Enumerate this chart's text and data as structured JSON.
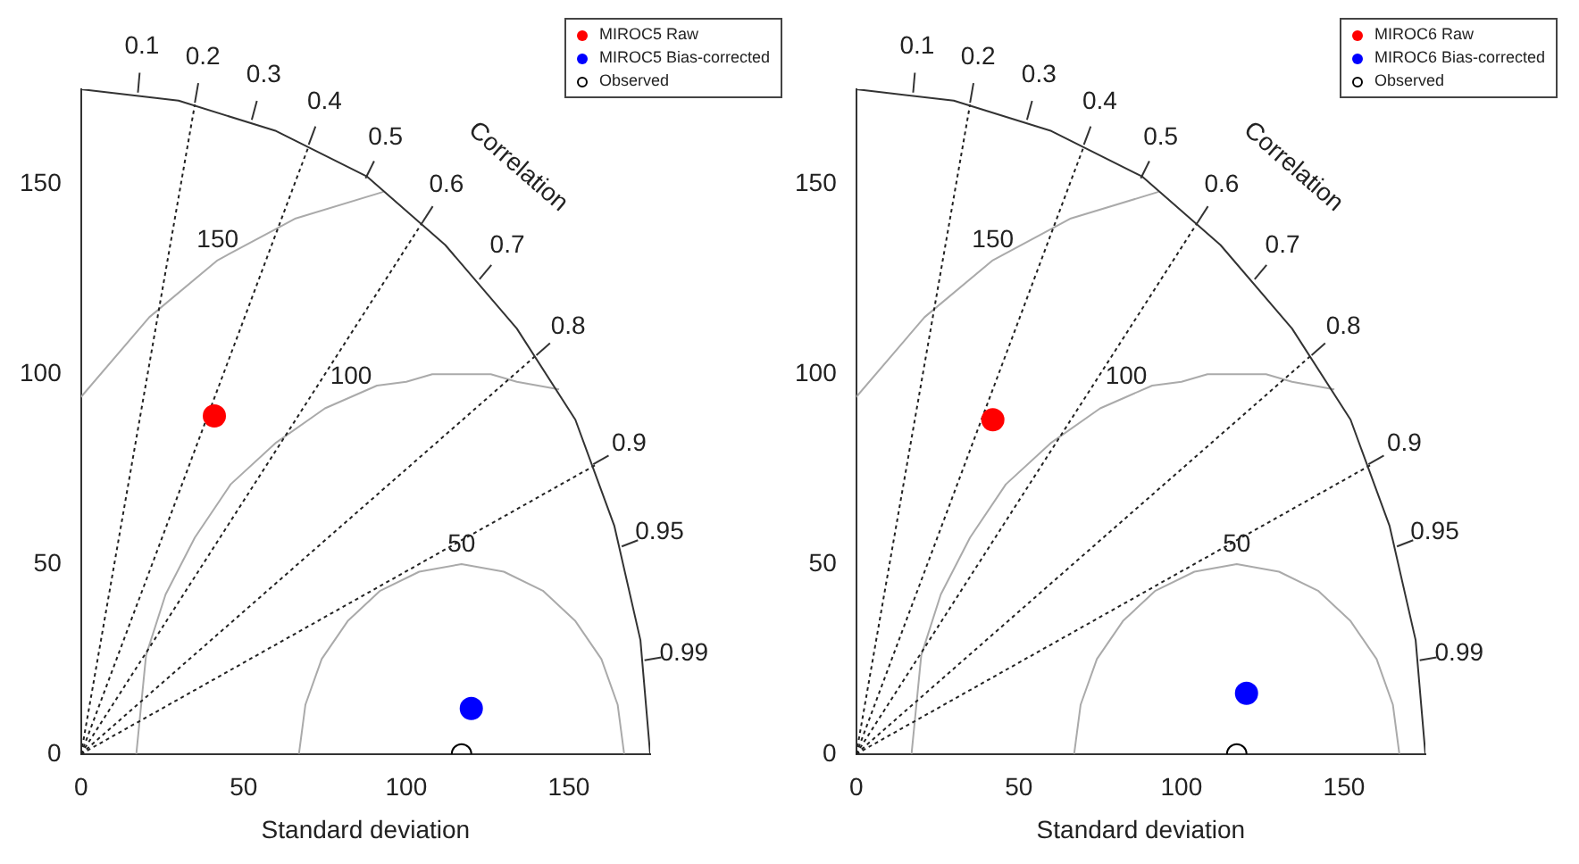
{
  "chart_data": [
    {
      "type": "scatter",
      "xlabel": "Standard deviation",
      "xlim": [
        0,
        175
      ],
      "ylim": [
        0,
        175
      ],
      "xticks": [
        0,
        50,
        100,
        150
      ],
      "yticks": [
        0,
        50,
        100,
        150
      ],
      "grid": false,
      "legend": "top right",
      "marker": "circle",
      "series": [
        {
          "type": "line",
          "color": "#333333",
          "marker": "none",
          "line_style": "solid",
          "x": [
            0,
            30,
            60,
            88,
            112,
            134,
            152,
            164,
            172,
            175
          ],
          "values": [
            175,
            172,
            164,
            152,
            134,
            112,
            88,
            60,
            30,
            0
          ]
        },
        {
          "type": "line",
          "color": "#222222",
          "marker": "none",
          "line_style": "dotted",
          "x": [
            0,
            35
          ],
          "values": [
            0,
            171
          ]
        },
        {
          "type": "line",
          "color": "#222222",
          "marker": "none",
          "line_style": "dotted",
          "x": [
            0,
            70
          ],
          "values": [
            0,
            160
          ]
        },
        {
          "type": "line",
          "color": "#222222",
          "marker": "none",
          "line_style": "dotted",
          "x": [
            0,
            105
          ],
          "values": [
            0,
            140
          ]
        },
        {
          "type": "line",
          "color": "#222222",
          "marker": "none",
          "line_style": "dotted",
          "x": [
            0,
            140
          ],
          "values": [
            0,
            105
          ]
        },
        {
          "type": "line",
          "color": "#222222",
          "marker": "none",
          "line_style": "dotted",
          "x": [
            0,
            158
          ],
          "values": [
            0,
            76
          ]
        },
        {
          "type": "line",
          "name": "50",
          "color": "#aaaaaa",
          "marker": "none",
          "line_style": "solid",
          "x": [
            67,
            69,
            74,
            82,
            92,
            104,
            117,
            130,
            142,
            152,
            160,
            165,
            167
          ],
          "values": [
            0,
            13,
            25,
            35,
            43,
            48,
            50,
            48,
            43,
            35,
            25,
            13,
            0
          ]
        },
        {
          "type": "line",
          "name": "100",
          "color": "#aaaaaa",
          "marker": "none",
          "line_style": "solid",
          "x": [
            17,
            20,
            26,
            35,
            46,
            60,
            75,
            83,
            91,
            100,
            108,
            117,
            126,
            134,
            147
          ],
          "values": [
            0,
            26,
            42,
            57,
            71,
            82,
            91,
            94,
            97,
            98,
            100,
            100,
            100,
            98,
            96
          ]
        },
        {
          "type": "line",
          "name": "150",
          "color": "#aaaaaa",
          "marker": "none",
          "line_style": "solid",
          "x": [
            0,
            21,
            42,
            66,
            93
          ],
          "values": [
            94,
            115,
            130,
            141,
            148
          ]
        },
        {
          "name": "MIROC5 Raw",
          "color": "#ff0000",
          "x": [
            41
          ],
          "values": [
            89
          ]
        },
        {
          "name": "MIROC5 Bias-corrected",
          "color": "#0000ff",
          "x": [
            120
          ],
          "values": [
            12
          ]
        },
        {
          "name": "Observed",
          "color": "#000000",
          "x": [
            117
          ],
          "values": [
            0
          ]
        }
      ],
      "annotations": [
        "Correlation",
        "0.1",
        "0.2",
        "0.3",
        "0.4",
        "0.5",
        "0.6",
        "0.7",
        "0.8",
        "0.9",
        "0.95",
        "0.99"
      ]
    },
    {
      "type": "scatter",
      "xlabel": "Standard deviation",
      "xlim": [
        0,
        175
      ],
      "ylim": [
        0,
        175
      ],
      "xticks": [
        0,
        50,
        100,
        150
      ],
      "yticks": [
        0,
        50,
        100,
        150
      ],
      "grid": false,
      "legend": "top right",
      "marker": "circle",
      "series": [
        {
          "type": "line",
          "color": "#333333",
          "marker": "none",
          "line_style": "solid",
          "x": [
            0,
            30,
            60,
            88,
            112,
            134,
            152,
            164,
            172,
            175
          ],
          "values": [
            175,
            172,
            164,
            152,
            134,
            112,
            88,
            60,
            30,
            0
          ]
        },
        {
          "type": "line",
          "color": "#222222",
          "marker": "none",
          "line_style": "dotted",
          "x": [
            0,
            35
          ],
          "values": [
            0,
            171
          ]
        },
        {
          "type": "line",
          "color": "#222222",
          "marker": "none",
          "line_style": "dotted",
          "x": [
            0,
            70
          ],
          "values": [
            0,
            160
          ]
        },
        {
          "type": "line",
          "color": "#222222",
          "marker": "none",
          "line_style": "dotted",
          "x": [
            0,
            105
          ],
          "values": [
            0,
            140
          ]
        },
        {
          "type": "line",
          "color": "#222222",
          "marker": "none",
          "line_style": "dotted",
          "x": [
            0,
            140
          ],
          "values": [
            0,
            105
          ]
        },
        {
          "type": "line",
          "color": "#222222",
          "marker": "none",
          "line_style": "dotted",
          "x": [
            0,
            158
          ],
          "values": [
            0,
            76
          ]
        },
        {
          "type": "line",
          "name": "50",
          "color": "#aaaaaa",
          "marker": "none",
          "line_style": "solid",
          "x": [
            67,
            69,
            74,
            82,
            92,
            104,
            117,
            130,
            142,
            152,
            160,
            165,
            167
          ],
          "values": [
            0,
            13,
            25,
            35,
            43,
            48,
            50,
            48,
            43,
            35,
            25,
            13,
            0
          ]
        },
        {
          "type": "line",
          "name": "100",
          "color": "#aaaaaa",
          "marker": "none",
          "line_style": "solid",
          "x": [
            17,
            20,
            26,
            35,
            46,
            60,
            75,
            83,
            91,
            100,
            108,
            117,
            126,
            134,
            147
          ],
          "values": [
            0,
            26,
            42,
            57,
            71,
            82,
            91,
            94,
            97,
            98,
            100,
            100,
            100,
            98,
            96
          ]
        },
        {
          "type": "line",
          "name": "150",
          "color": "#aaaaaa",
          "marker": "none",
          "line_style": "solid",
          "x": [
            0,
            21,
            42,
            66,
            93
          ],
          "values": [
            94,
            115,
            130,
            141,
            148
          ]
        },
        {
          "name": "MIROC6 Raw",
          "color": "#ff0000",
          "x": [
            42
          ],
          "values": [
            88
          ]
        },
        {
          "name": "MIROC6 Bias-corrected",
          "color": "#0000ff",
          "x": [
            120
          ],
          "values": [
            16
          ]
        },
        {
          "name": "Observed",
          "color": "#000000",
          "x": [
            117
          ],
          "values": [
            0
          ]
        }
      ],
      "annotations": [
        "Correlation",
        "0.1",
        "0.2",
        "0.3",
        "0.4",
        "0.5",
        "0.6",
        "0.7",
        "0.8",
        "0.9",
        "0.95",
        "0.99"
      ]
    }
  ]
}
